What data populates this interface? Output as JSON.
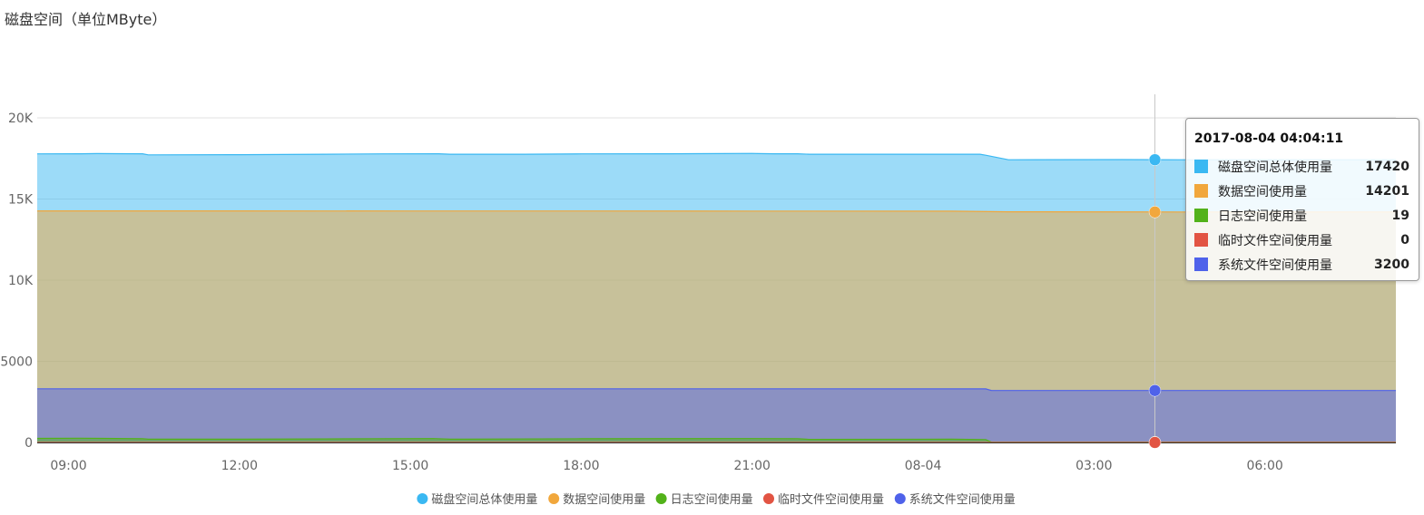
{
  "page": {
    "title": "磁盘空间（单位MByte）"
  },
  "chart_data": {
    "type": "area",
    "title": "磁盘空间（单位MByte）",
    "xlabel": "",
    "ylabel": "",
    "x_tick_labels": [
      "09:00",
      "12:00",
      "15:00",
      "18:00",
      "21:00",
      "08-04",
      "03:00",
      "06:00"
    ],
    "x_tick_hours": [
      9,
      12,
      15,
      18,
      21,
      24,
      27,
      30
    ],
    "x_range_hours": [
      8.45,
      32.3
    ],
    "y_tick_labels": [
      "0",
      "5000",
      "10K",
      "15K",
      "20K"
    ],
    "y_ticks": [
      0,
      5000,
      10000,
      15000,
      20000
    ],
    "ylim": [
      0,
      20000
    ],
    "grid": "horizontal",
    "legend_position": "bottom-center",
    "series": [
      {
        "name": "磁盘空间总体使用量",
        "color": "#3ab8f2",
        "points": [
          [
            8.45,
            17780
          ],
          [
            9.2,
            17790
          ],
          [
            9.5,
            17800
          ],
          [
            10.3,
            17790
          ],
          [
            10.4,
            17720
          ],
          [
            12,
            17730
          ],
          [
            13.5,
            17760
          ],
          [
            14.5,
            17780
          ],
          [
            15.5,
            17790
          ],
          [
            15.7,
            17760
          ],
          [
            17,
            17760
          ],
          [
            18,
            17780
          ],
          [
            19.5,
            17790
          ],
          [
            20.5,
            17800
          ],
          [
            21,
            17810
          ],
          [
            21.1,
            17800
          ],
          [
            21.4,
            17790
          ],
          [
            21.8,
            17790
          ],
          [
            22,
            17760
          ],
          [
            23,
            17760
          ],
          [
            25,
            17760
          ],
          [
            25.1,
            17700
          ],
          [
            25.5,
            17420
          ],
          [
            27.5,
            17430
          ],
          [
            28.5,
            17420
          ],
          [
            30,
            17420
          ],
          [
            32.3,
            17420
          ]
        ]
      },
      {
        "name": "数据空间使用量",
        "color": "#f1a73c",
        "points": [
          [
            8.45,
            14270
          ],
          [
            12,
            14270
          ],
          [
            15,
            14260
          ],
          [
            18,
            14260
          ],
          [
            21,
            14255
          ],
          [
            24.5,
            14250
          ],
          [
            25.5,
            14210
          ],
          [
            28.5,
            14201
          ],
          [
            32.3,
            14201
          ]
        ]
      },
      {
        "name": "日志空间使用量",
        "color": "#52b21a",
        "points": [
          [
            8.45,
            250
          ],
          [
            9.2,
            260
          ],
          [
            9.6,
            250
          ],
          [
            10.3,
            230
          ],
          [
            10.4,
            200
          ],
          [
            12,
            200
          ],
          [
            13.5,
            220
          ],
          [
            15.4,
            240
          ],
          [
            15.7,
            200
          ],
          [
            18,
            230
          ],
          [
            21,
            240
          ],
          [
            21.8,
            230
          ],
          [
            22,
            190
          ],
          [
            24.5,
            200
          ],
          [
            25.1,
            180
          ],
          [
            25.2,
            19
          ],
          [
            32.3,
            19
          ]
        ]
      },
      {
        "name": "临时文件空间使用量",
        "color": "#e25443",
        "points": [
          [
            8.45,
            0
          ],
          [
            32.3,
            0
          ]
        ]
      },
      {
        "name": "系统文件空间使用量",
        "color": "#4f62ea",
        "points": [
          [
            8.45,
            3310
          ],
          [
            12,
            3310
          ],
          [
            15,
            3305
          ],
          [
            18,
            3305
          ],
          [
            21,
            3305
          ],
          [
            25.1,
            3300
          ],
          [
            25.2,
            3200
          ],
          [
            28.5,
            3200
          ],
          [
            32.3,
            3200
          ]
        ]
      }
    ],
    "crosshair_hour": 28.07,
    "tooltip": {
      "time": "2017-08-04 04:04:11",
      "rows": [
        {
          "name": "磁盘空间总体使用量",
          "value": "17420",
          "color": "#3ab8f2"
        },
        {
          "name": "数据空间使用量",
          "value": "14201",
          "color": "#f1a73c"
        },
        {
          "name": "日志空间使用量",
          "value": "19",
          "color": "#52b21a"
        },
        {
          "name": "临时文件空间使用量",
          "value": "0",
          "color": "#e25443"
        },
        {
          "name": "系统文件空间使用量",
          "value": "3200",
          "color": "#4f62ea"
        }
      ]
    }
  }
}
